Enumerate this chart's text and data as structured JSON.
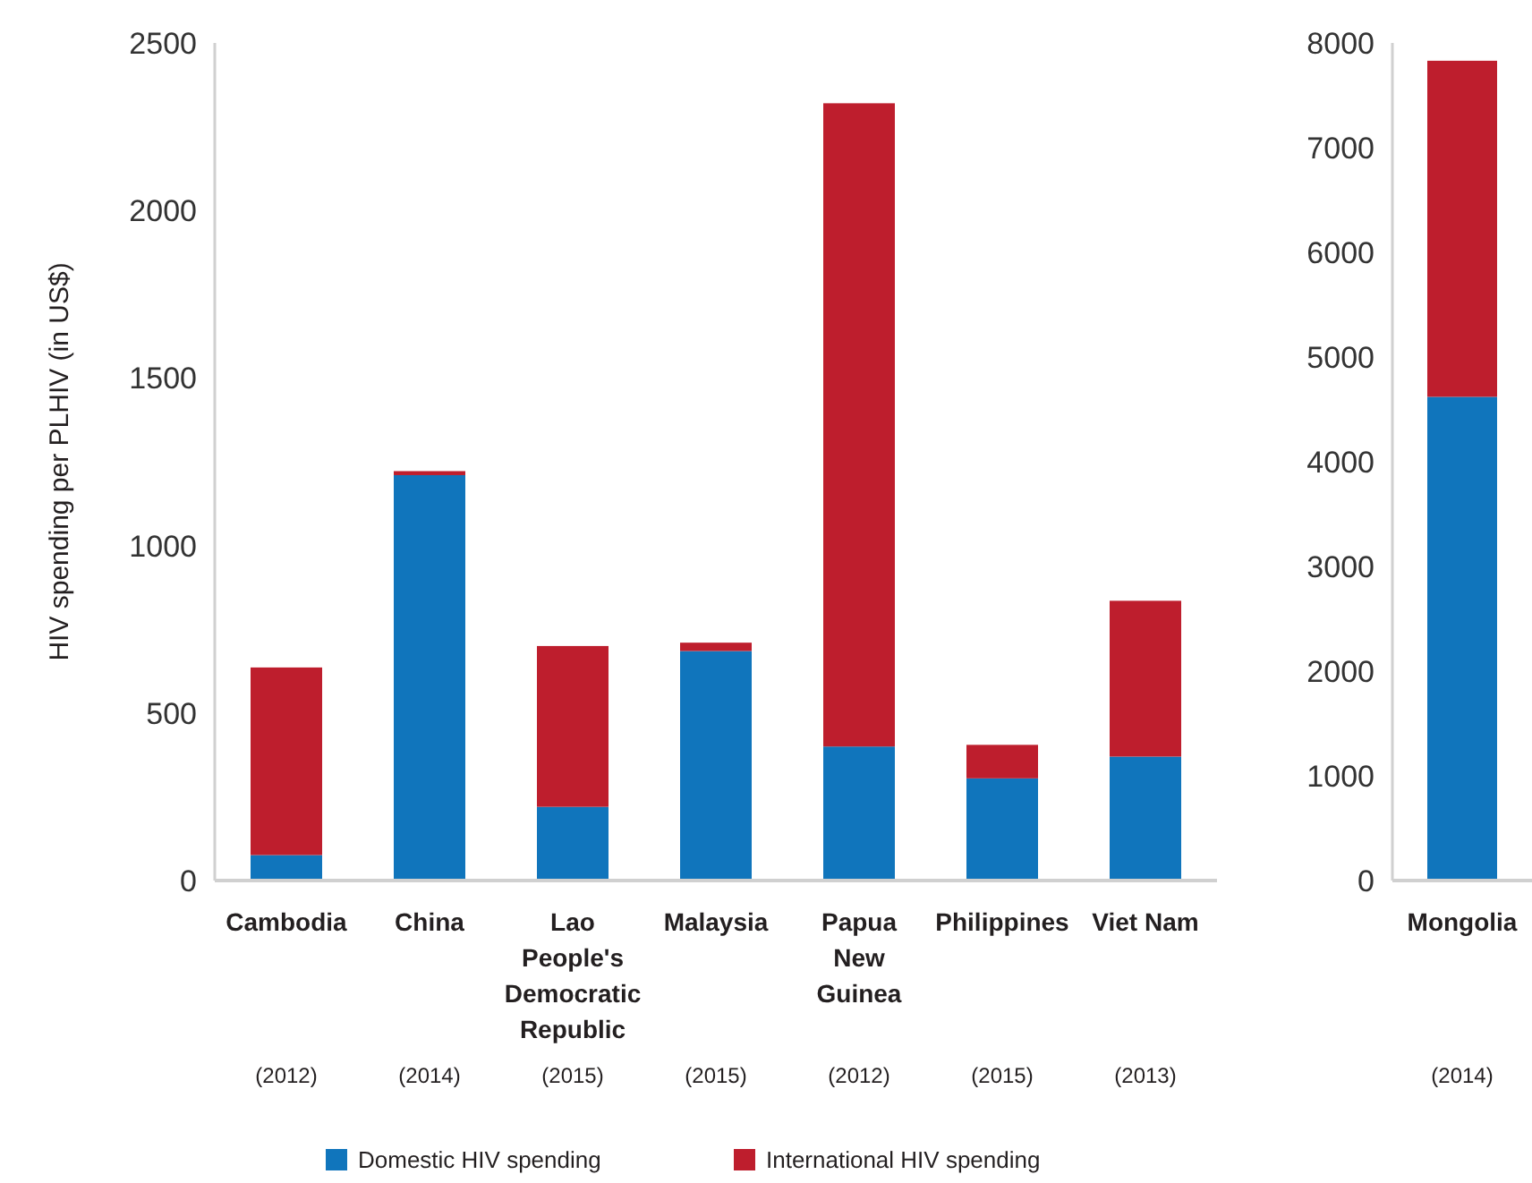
{
  "chart_data": [
    {
      "type": "bar",
      "stacked": true,
      "ylabel": "HIV spending per PLHIV (in US$)",
      "categories": [
        "Cambodia",
        "China",
        "Lao People's Democratic Republic",
        "Malaysia",
        "Papua New Guinea",
        "Philippines",
        "Viet Nam"
      ],
      "annotations": [
        "(2012)",
        "(2014)",
        "(2015)",
        "(2015)",
        "(2012)",
        "(2015)",
        "(2013)"
      ],
      "series": [
        {
          "name": "Domestic HIV spending",
          "color": "#1075bc",
          "values": [
            76,
            1210,
            220,
            685,
            400,
            305,
            370
          ]
        },
        {
          "name": "International HIV spending",
          "color": "#be1e2d",
          "values": [
            560,
            12,
            480,
            25,
            1920,
            100,
            465
          ]
        }
      ],
      "ylim": [
        0,
        2500
      ],
      "yticks": [
        0,
        500,
        1000,
        1500,
        2000,
        2500
      ],
      "grid": false,
      "legend": "bottom"
    },
    {
      "type": "bar",
      "stacked": true,
      "categories": [
        "Mongolia"
      ],
      "annotations": [
        "(2014)"
      ],
      "series": [
        {
          "color": "#1075bc",
          "values": [
            4620
          ]
        },
        {
          "color": "#be1e2d",
          "values": [
            3210
          ]
        }
      ],
      "ylim": [
        0,
        8000
      ],
      "yticks": [
        0,
        1000,
        2000,
        3000,
        4000,
        5000,
        6000,
        7000,
        8000
      ],
      "grid": false
    }
  ]
}
